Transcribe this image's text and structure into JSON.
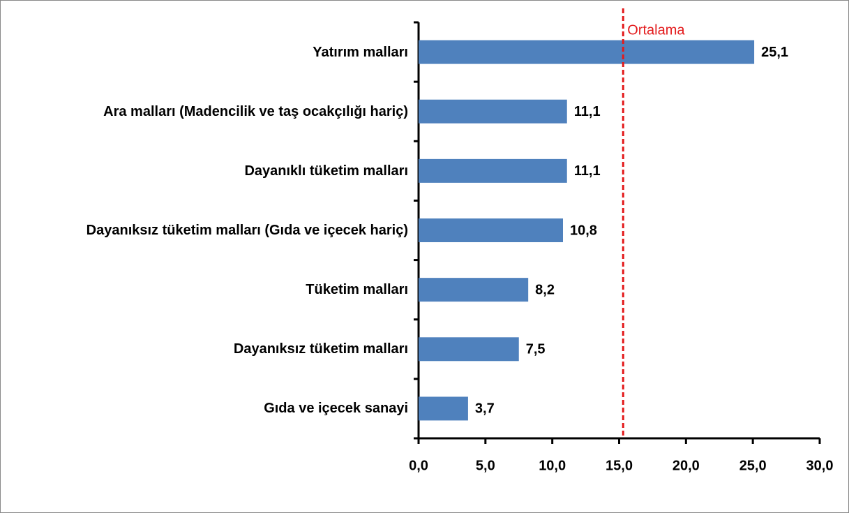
{
  "chart_data": {
    "type": "bar",
    "orientation": "horizontal",
    "categories": [
      "Yatırım malları",
      "Ara malları (Madencilik ve taş ocakçılığı hariç)",
      "Dayanıklı tüketim malları",
      "Dayanıksız tüketim malları (Gıda ve içecek hariç)",
      "Tüketim malları",
      "Dayanıksız tüketim malları",
      "Gıda ve içecek sanayi"
    ],
    "values": [
      25.1,
      11.1,
      11.1,
      10.8,
      8.2,
      7.5,
      3.7
    ],
    "value_labels": [
      "25,1",
      "11,1",
      "11,1",
      "10,8",
      "8,2",
      "7,5",
      "3,7"
    ],
    "color": "#4f81bd",
    "xlim": [
      0,
      30
    ],
    "xticks": [
      {
        "value": 0,
        "label": "0,0"
      },
      {
        "value": 5,
        "label": "5,0"
      },
      {
        "value": 10,
        "label": "10,0"
      },
      {
        "value": 15,
        "label": "15,0"
      },
      {
        "value": 20,
        "label": "20,0"
      },
      {
        "value": 25,
        "label": "25,0"
      },
      {
        "value": 30,
        "label": "30,0"
      }
    ],
    "reference_line": {
      "label": "Ortalama",
      "value": 15.3,
      "color": "#e31a1c"
    }
  }
}
